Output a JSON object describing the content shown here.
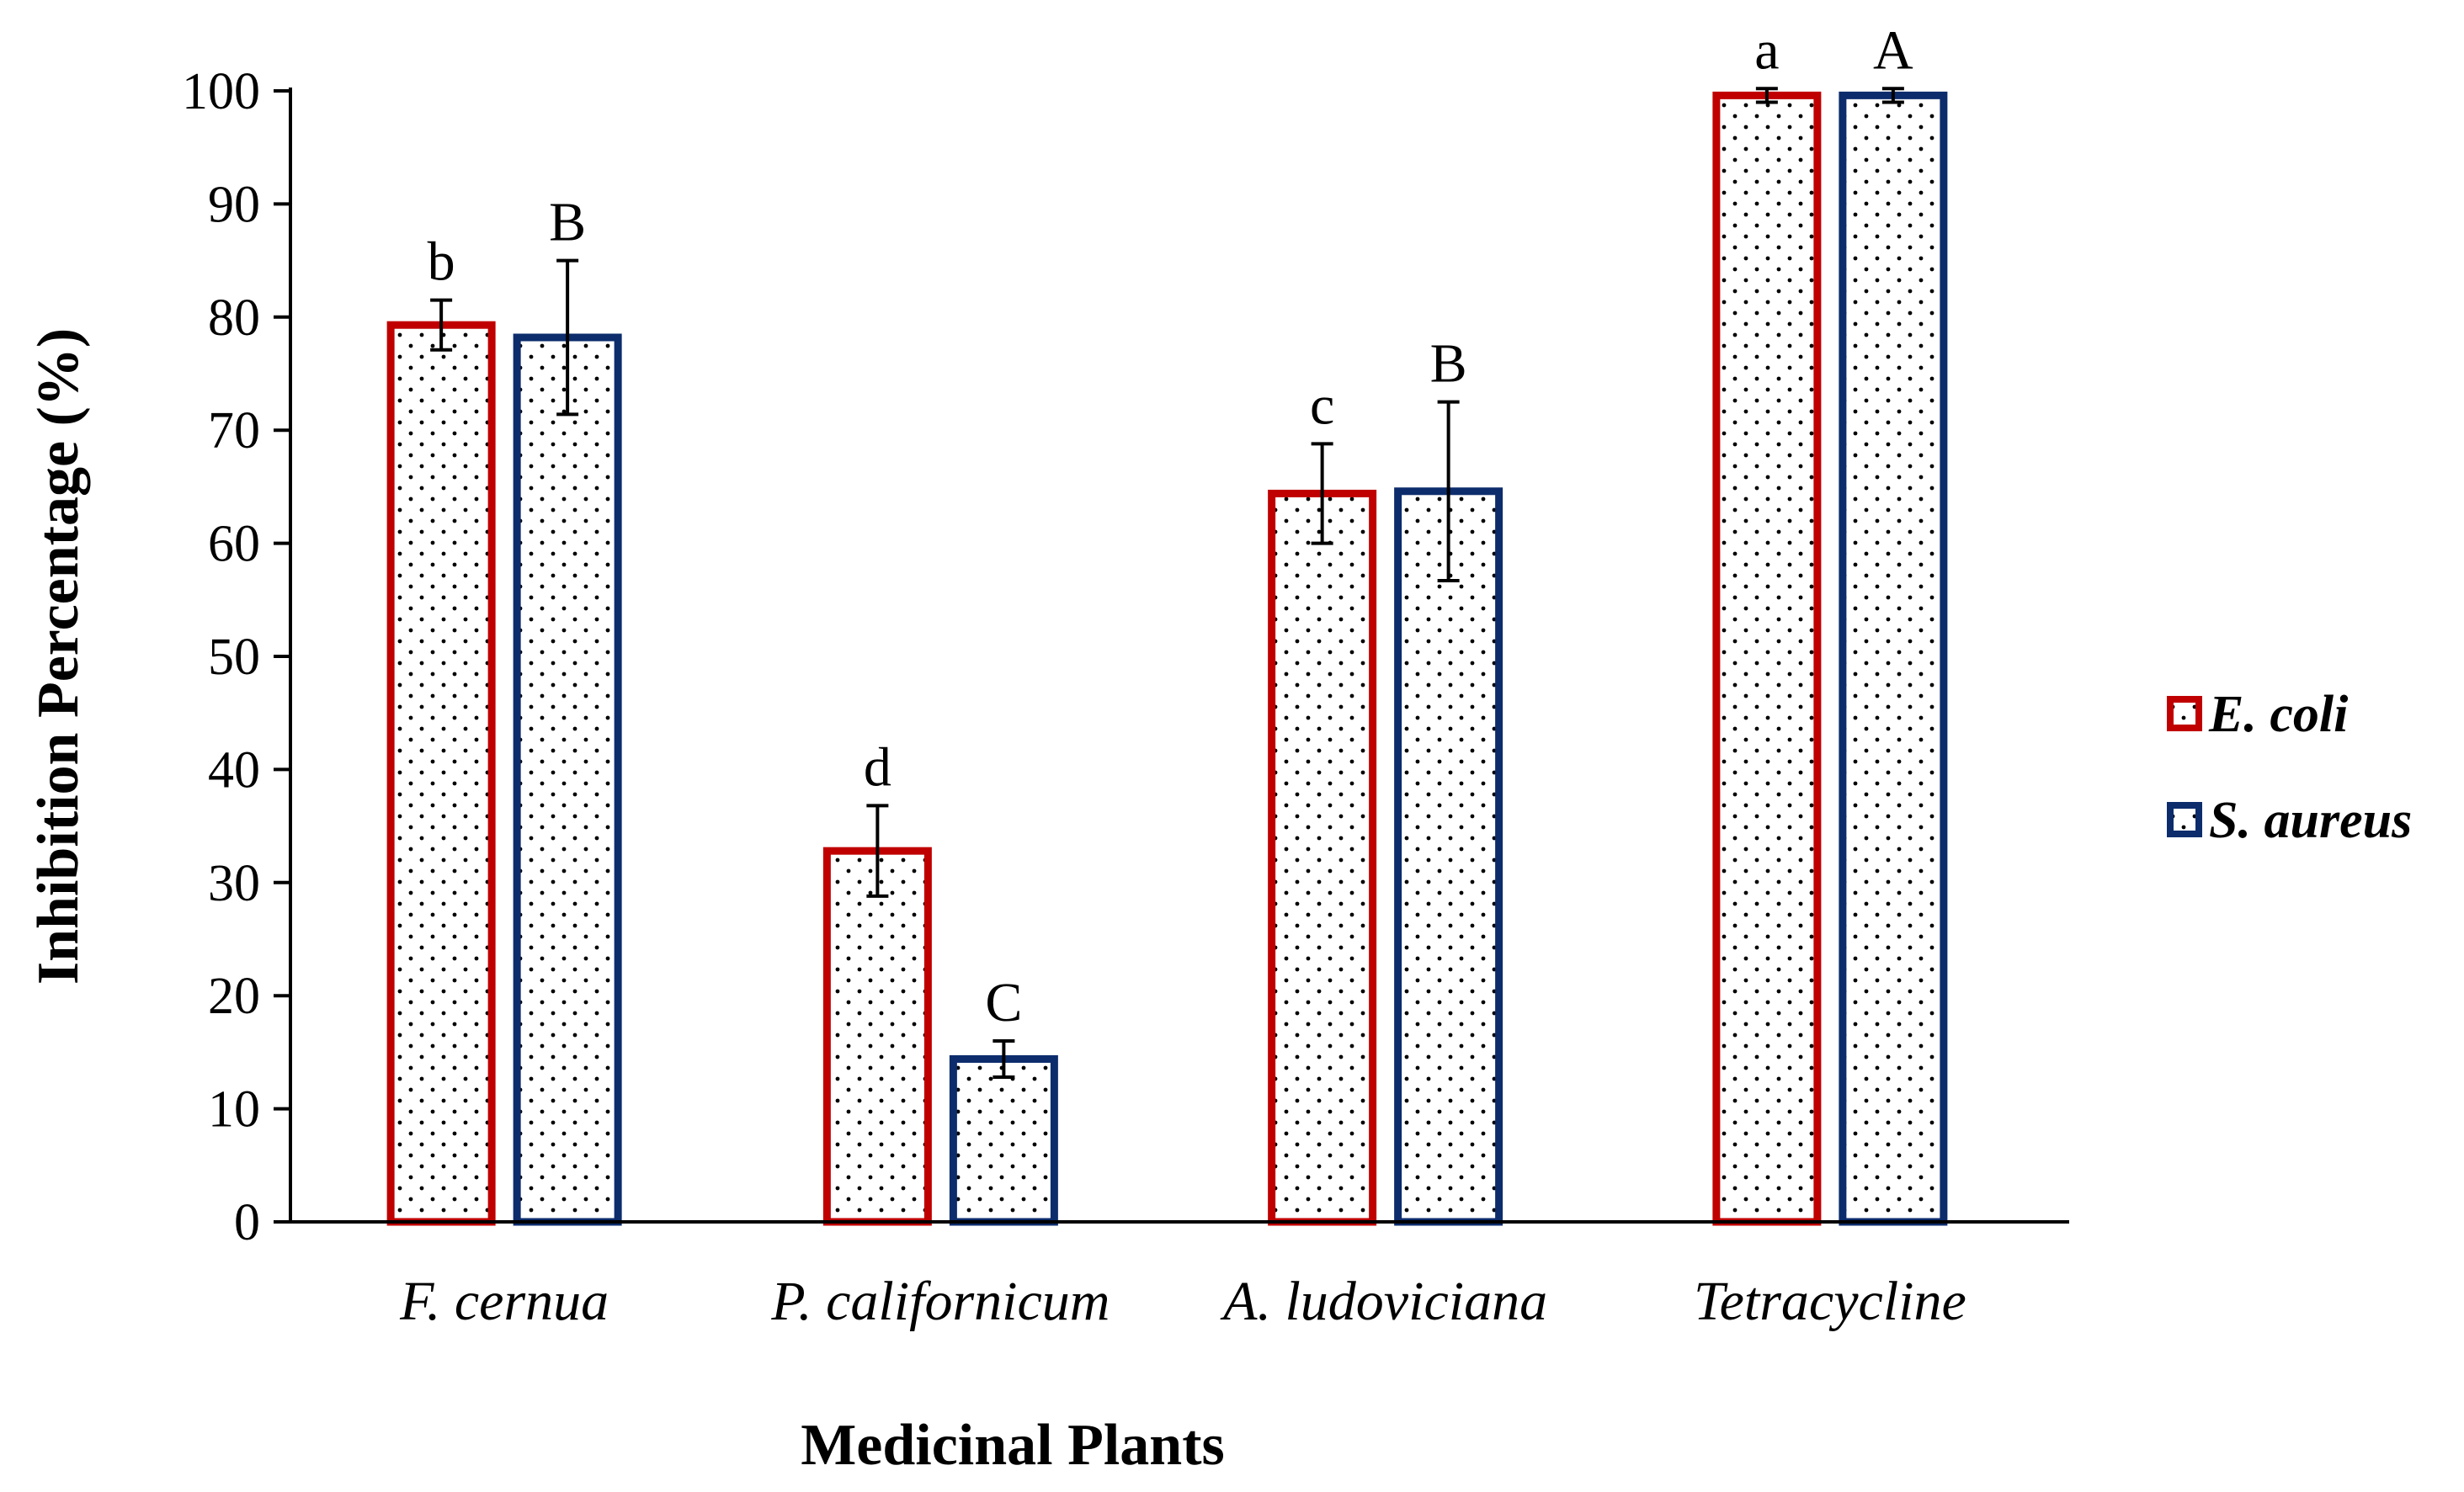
{
  "chart_data": {
    "type": "bar",
    "title": "",
    "xlabel": "Medicinal Plants",
    "ylabel": "Inhibition Percentage (%)",
    "ylim": [
      0,
      100
    ],
    "yticks": [
      0,
      10,
      20,
      30,
      40,
      50,
      60,
      70,
      80,
      90,
      100
    ],
    "ytick_labels": [
      "0",
      "10",
      "20",
      "30",
      "40",
      "50",
      "60",
      "70",
      "80",
      "90",
      "100"
    ],
    "categories": [
      "F. cernua",
      "P. californicum",
      "A. ludoviciana",
      "Tetracycline"
    ],
    "series": [
      {
        "name": "E. coli",
        "color": "#c00000",
        "values": [
          79.3,
          32.8,
          64.4,
          99.6
        ],
        "errors": [
          2.2,
          4.0,
          4.4,
          0.6
        ],
        "letters": [
          "b",
          "d",
          "c",
          "a"
        ]
      },
      {
        "name": "S. aureus",
        "color": "#0c2c6c",
        "values": [
          78.2,
          14.4,
          64.6,
          99.6
        ],
        "errors": [
          6.8,
          1.6,
          7.9,
          0.6
        ],
        "letters": [
          "B",
          "C",
          "B",
          "A"
        ]
      }
    ],
    "legend_position": "right",
    "fill_pattern": "dots"
  }
}
